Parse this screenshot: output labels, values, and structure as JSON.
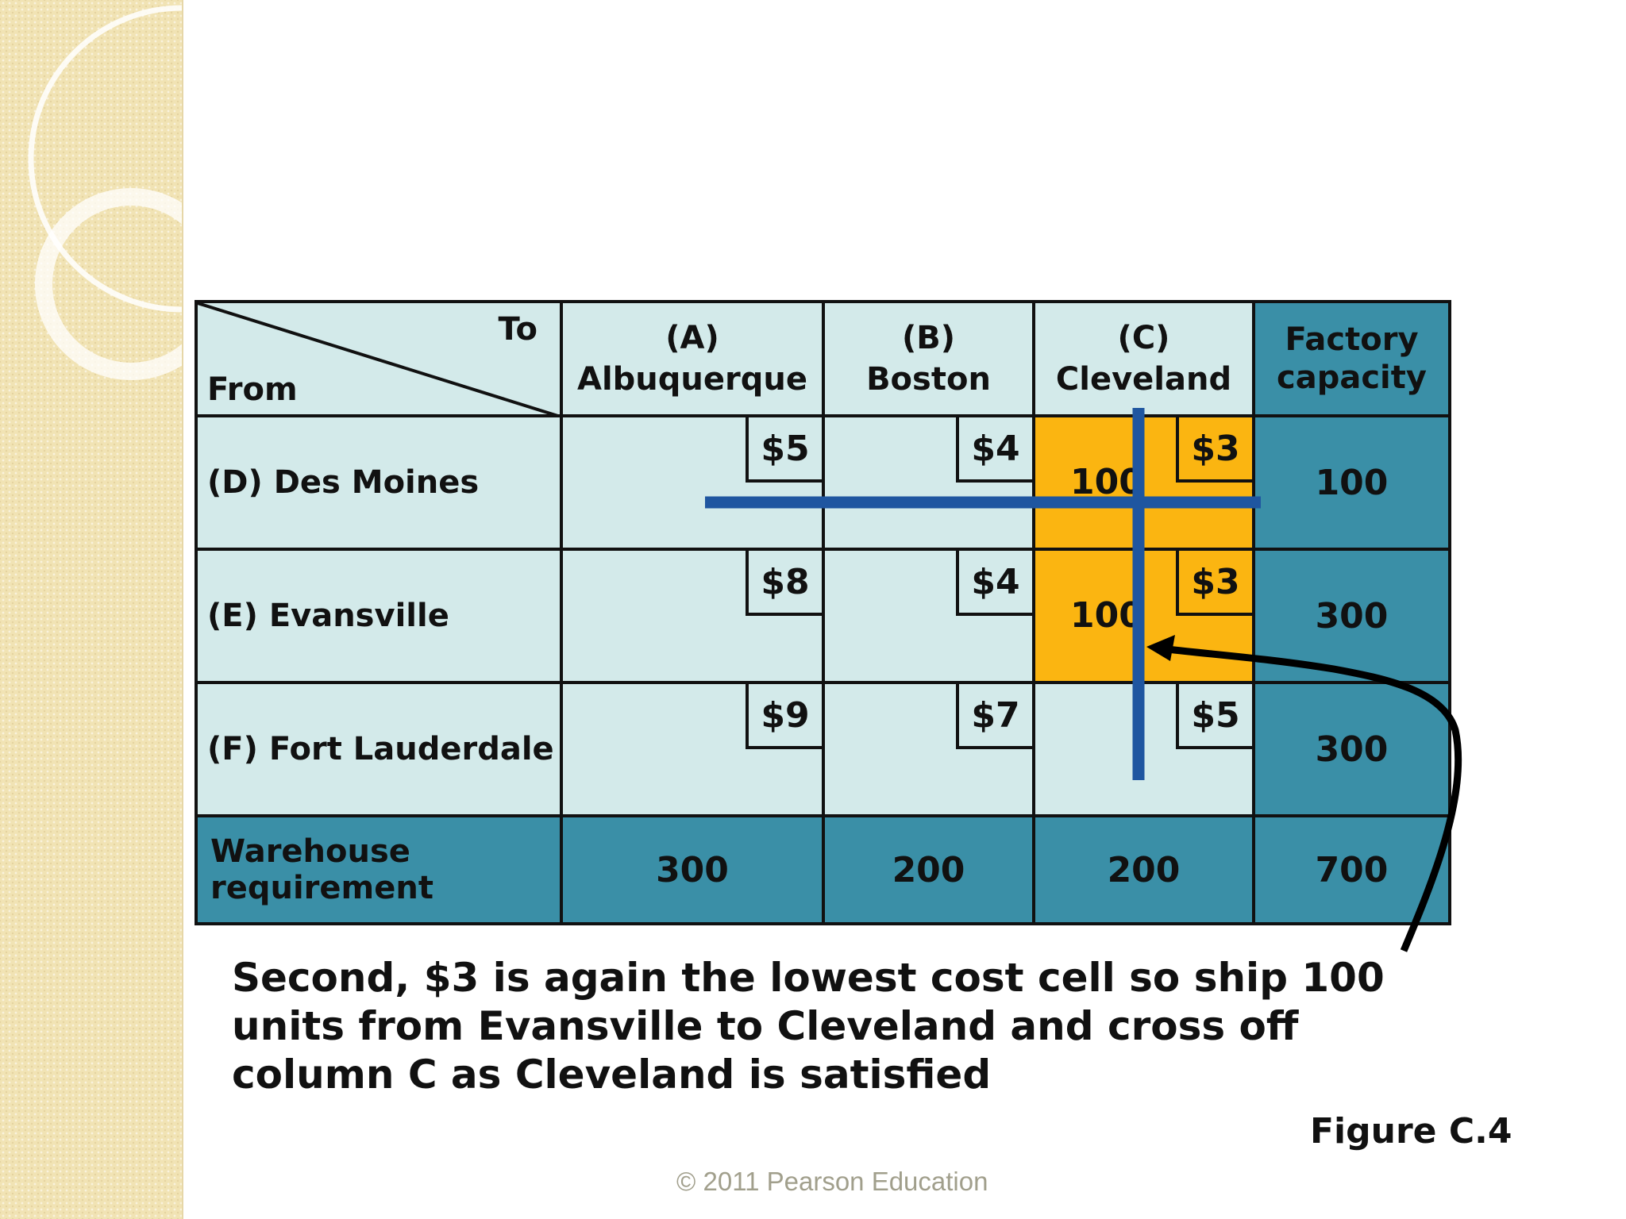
{
  "header": {
    "to_label": "To",
    "from_label": "From",
    "columns": [
      {
        "code": "(A)",
        "name": "Albuquerque"
      },
      {
        "code": "(B)",
        "name": "Boston"
      },
      {
        "code": "(C)",
        "name": "Cleveland"
      }
    ],
    "capacity_line1": "Factory",
    "capacity_line2": "capacity"
  },
  "rows": [
    {
      "label": "(D) Des Moines",
      "costs": [
        "$5",
        "$4",
        "$3"
      ],
      "allocations": [
        "",
        "",
        "100"
      ],
      "capacity": "100"
    },
    {
      "label": "(E) Evansville",
      "costs": [
        "$8",
        "$4",
        "$3"
      ],
      "allocations": [
        "",
        "",
        "100"
      ],
      "capacity": "300"
    },
    {
      "label": "(F) Fort Lauderdale",
      "costs": [
        "$9",
        "$7",
        "$5"
      ],
      "allocations": [
        "",
        "",
        ""
      ],
      "capacity": "300"
    }
  ],
  "requirement": {
    "label_line1": "Warehouse",
    "label_line2": "requirement",
    "values": [
      "300",
      "200",
      "200"
    ],
    "total": "700"
  },
  "colors": {
    "light_cell": "#d3eaea",
    "dark_cell": "#3a8fa7",
    "highlight_cell": "#fbb511",
    "cross_line": "#1f56a0"
  },
  "caption": "Second, $3 is again the lowest cost cell so ship 100 units from Evansville to Cleveland and cross off column C as Cleveland is satisfied",
  "figure_label": "Figure C.4",
  "copyright": "© 2011 Pearson Education"
}
